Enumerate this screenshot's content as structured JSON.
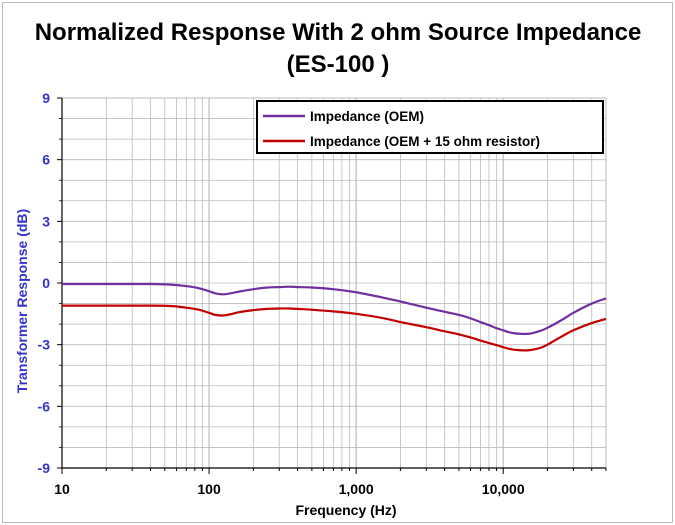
{
  "chart_data": {
    "type": "line",
    "title_line1": "Normalized Response With 2 ohm Source Impedance",
    "title_line2": "(ES-100 )",
    "xlabel": "Frequency (Hz)",
    "ylabel": "Transformer  Response (dB)",
    "xscale": "log",
    "xlim": [
      10,
      50000
    ],
    "ylim": [
      -9,
      9
    ],
    "x_ticks": [
      10,
      100,
      1000,
      10000
    ],
    "x_tick_labels": [
      "10",
      "100",
      "1,000",
      "10,000"
    ],
    "y_ticks": [
      9,
      6,
      3,
      0,
      -3,
      -6,
      -9
    ],
    "y_tick_labels": [
      "9",
      "6",
      "3",
      "0",
      "-3",
      "-6",
      "-9"
    ],
    "grid": true,
    "legend_position": "top-right",
    "series": [
      {
        "name": "Impedance (OEM)",
        "color": "#7030a0",
        "x": [
          10,
          20,
          40,
          55,
          70,
          85,
          100,
          110,
          125,
          140,
          160,
          200,
          250,
          300,
          350,
          400,
          500,
          700,
          1000,
          1500,
          2000,
          3000,
          4000,
          5000,
          6000,
          7000,
          8000,
          9000,
          10000,
          11000,
          12000,
          13000,
          14000,
          15000,
          16000,
          18000,
          20000,
          25000,
          30000,
          40000,
          50000
        ],
        "values": [
          -0.05,
          -0.05,
          -0.05,
          -0.08,
          -0.15,
          -0.25,
          -0.4,
          -0.5,
          -0.55,
          -0.5,
          -0.42,
          -0.3,
          -0.22,
          -0.2,
          -0.18,
          -0.2,
          -0.22,
          -0.3,
          -0.45,
          -0.7,
          -0.9,
          -1.2,
          -1.4,
          -1.55,
          -1.72,
          -1.9,
          -2.05,
          -2.2,
          -2.3,
          -2.4,
          -2.45,
          -2.47,
          -2.48,
          -2.47,
          -2.43,
          -2.32,
          -2.18,
          -1.8,
          -1.45,
          -1.0,
          -0.75
        ]
      },
      {
        "name": "Impedance (OEM + 15 ohm resistor)",
        "color": "#c00000",
        "x": [
          10,
          20,
          40,
          55,
          70,
          85,
          100,
          110,
          125,
          140,
          160,
          200,
          250,
          300,
          350,
          400,
          500,
          700,
          1000,
          1500,
          2000,
          3000,
          4000,
          5000,
          6000,
          7000,
          8000,
          9000,
          10000,
          11000,
          12000,
          13000,
          14000,
          15000,
          16000,
          18000,
          20000,
          25000,
          30000,
          40000,
          50000
        ],
        "values": [
          -1.1,
          -1.1,
          -1.1,
          -1.12,
          -1.2,
          -1.3,
          -1.45,
          -1.55,
          -1.58,
          -1.52,
          -1.42,
          -1.32,
          -1.26,
          -1.24,
          -1.24,
          -1.26,
          -1.3,
          -1.38,
          -1.5,
          -1.7,
          -1.9,
          -2.15,
          -2.35,
          -2.5,
          -2.65,
          -2.8,
          -2.92,
          -3.02,
          -3.12,
          -3.2,
          -3.25,
          -3.27,
          -3.28,
          -3.27,
          -3.24,
          -3.15,
          -3.0,
          -2.6,
          -2.3,
          -1.95,
          -1.75
        ]
      }
    ]
  },
  "style": {
    "axis_color": "#000000",
    "tick_label_color_y": "#3333cc",
    "grid_color": "#bbbbbb",
    "frame_color": "#bbbbbb"
  }
}
